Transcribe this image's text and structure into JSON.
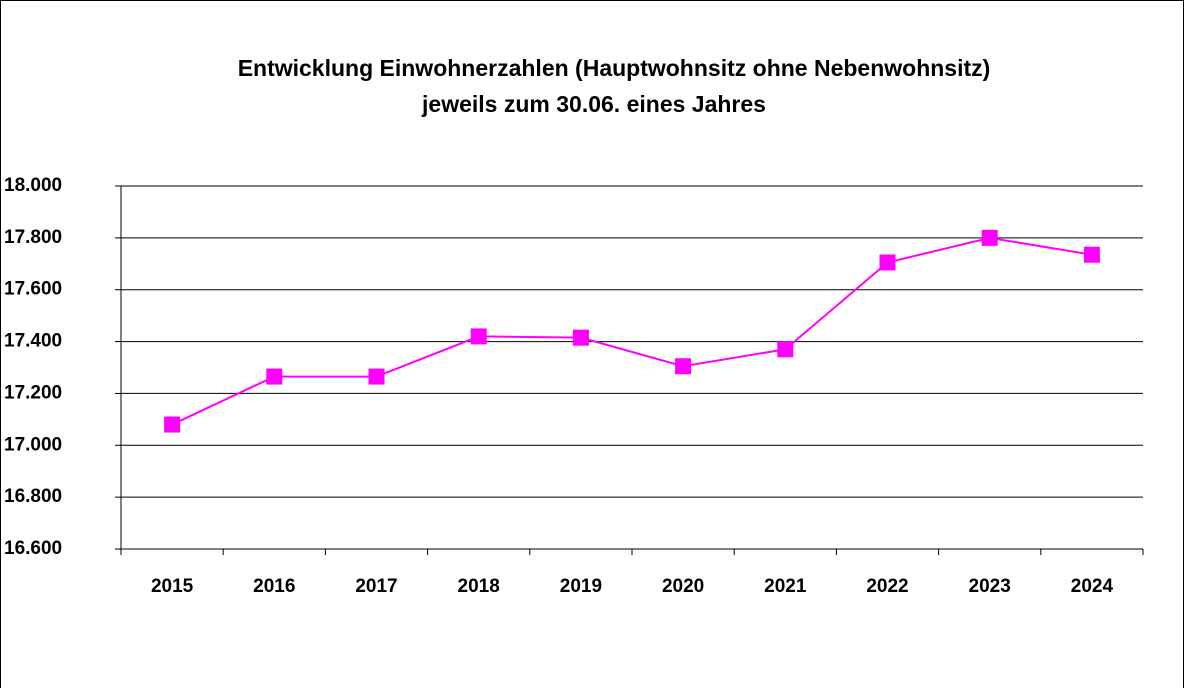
{
  "chart_data": {
    "type": "line",
    "title": "Entwicklung Einwohnerzahlen (Hauptwohnsitz ohne Nebenwohnsitz)",
    "subtitle": "jeweils zum 30.06. eines Jahres",
    "categories": [
      "2015",
      "2016",
      "2017",
      "2018",
      "2019",
      "2020",
      "2021",
      "2022",
      "2023",
      "2024"
    ],
    "series": [
      {
        "name": "Einwohner",
        "color": "#ff00ff",
        "values": [
          17080,
          17265,
          17265,
          17420,
          17415,
          17305,
          17370,
          17705,
          17800,
          17735
        ]
      }
    ],
    "ylim": [
      16600,
      18000
    ],
    "yticks": [
      {
        "value": 16600,
        "label": "16.600"
      },
      {
        "value": 16800,
        "label": "16.800"
      },
      {
        "value": 17000,
        "label": "17.000"
      },
      {
        "value": 17200,
        "label": "17.200"
      },
      {
        "value": 17400,
        "label": "17.400"
      },
      {
        "value": 17600,
        "label": "17.600"
      },
      {
        "value": 17800,
        "label": "17.800"
      },
      {
        "value": 18000,
        "label": "18.000"
      }
    ],
    "grid": true
  }
}
